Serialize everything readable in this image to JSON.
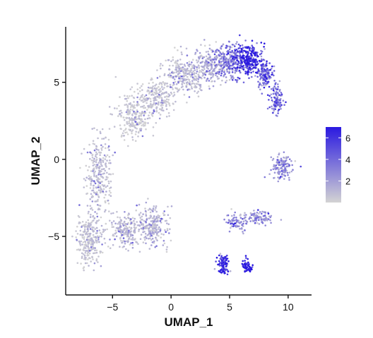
{
  "chart_data": {
    "type": "scatter",
    "title": "",
    "xlabel": "UMAP_1",
    "ylabel": "UMAP_2",
    "xlim": [
      -9,
      12
    ],
    "ylim": [
      -8.8,
      8.6
    ],
    "x_ticks": [
      -5,
      0,
      5,
      10
    ],
    "y_ticks": [
      -5,
      0,
      5
    ],
    "x_tick_labels": [
      "−5",
      "0",
      "5",
      "10"
    ],
    "y_tick_labels": [
      "−5",
      "0",
      "5"
    ],
    "grid": false,
    "color_scale": {
      "low_color": "#d3d3d3",
      "high_color": "#2a19e0",
      "min": 0,
      "max": 7,
      "ticks": [
        2,
        4,
        6
      ],
      "tick_labels": [
        "2",
        "4",
        "6"
      ],
      "legend_position": "right"
    },
    "clusters": [
      {
        "x": -7,
        "y": -5.2,
        "rx": 0.9,
        "ry": 1.5,
        "level": 0.5,
        "n": 260
      },
      {
        "x": -6.2,
        "y": -1,
        "rx": 1.0,
        "ry": 2.3,
        "level": 0.6,
        "n": 280
      },
      {
        "x": -3.8,
        "y": -4.6,
        "rx": 1.3,
        "ry": 0.9,
        "level": 0.7,
        "n": 200
      },
      {
        "x": -1.6,
        "y": -4.4,
        "rx": 1.2,
        "ry": 1.2,
        "level": 0.9,
        "n": 220
      },
      {
        "x": -3.2,
        "y": 2.8,
        "rx": 1.4,
        "ry": 1.3,
        "level": 0.3,
        "n": 240
      },
      {
        "x": -1.2,
        "y": 4.0,
        "rx": 1.4,
        "ry": 1.0,
        "level": 0.4,
        "n": 220
      },
      {
        "x": 1.2,
        "y": 5.5,
        "rx": 1.6,
        "ry": 1.0,
        "level": 0.7,
        "n": 260
      },
      {
        "x": 3.4,
        "y": 6.1,
        "rx": 1.3,
        "ry": 1.0,
        "level": 1.3,
        "n": 240
      },
      {
        "x": 5.2,
        "y": 6.4,
        "rx": 1.1,
        "ry": 1.0,
        "level": 3.0,
        "n": 240
      },
      {
        "x": 6.6,
        "y": 6.5,
        "rx": 1.0,
        "ry": 0.9,
        "level": 5.6,
        "n": 260
      },
      {
        "x": 8.0,
        "y": 5.6,
        "rx": 0.7,
        "ry": 0.9,
        "level": 3.6,
        "n": 150
      },
      {
        "x": 9.0,
        "y": 3.8,
        "rx": 0.5,
        "ry": 0.8,
        "level": 3.3,
        "n": 110
      },
      {
        "x": 9.5,
        "y": -0.5,
        "rx": 0.8,
        "ry": 0.7,
        "level": 2.0,
        "n": 130
      },
      {
        "x": 7.4,
        "y": -3.8,
        "rx": 1.1,
        "ry": 0.4,
        "level": 2.2,
        "n": 100
      },
      {
        "x": 5.6,
        "y": -4.1,
        "rx": 0.8,
        "ry": 0.5,
        "level": 2.4,
        "n": 70
      },
      {
        "x": 4.5,
        "y": -6.8,
        "rx": 0.45,
        "ry": 0.6,
        "level": 6.2,
        "n": 90
      },
      {
        "x": 6.5,
        "y": -6.9,
        "rx": 0.5,
        "ry": 0.35,
        "level": 6.0,
        "n": 60
      }
    ]
  }
}
